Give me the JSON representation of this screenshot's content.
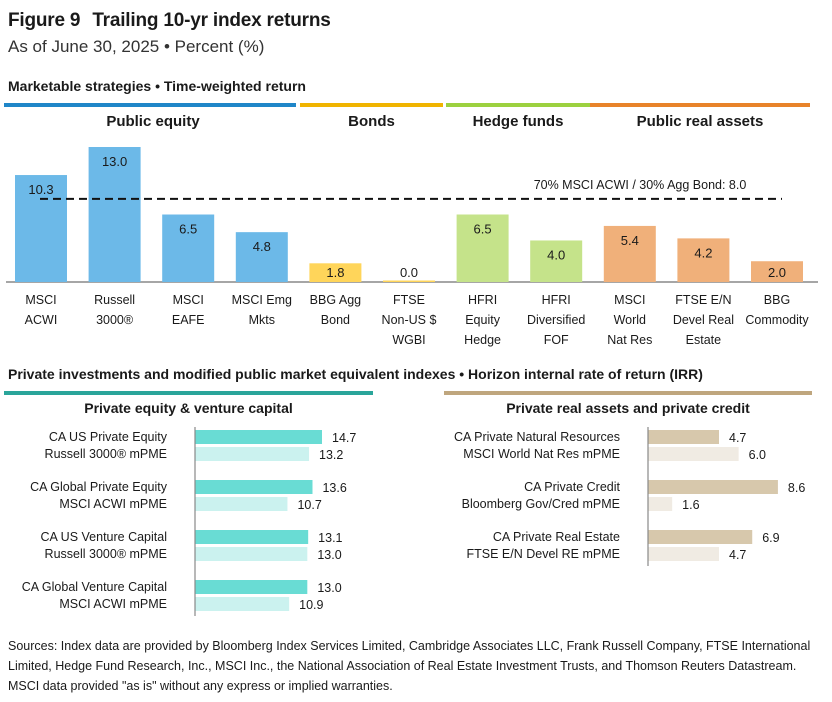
{
  "header": {
    "figure_label": "Figure 9",
    "title": "Trailing 10-yr index returns",
    "subtitle": "As of June 30, 2025 • Percent (%)"
  },
  "sections": {
    "marketable": "Marketable strategies • Time-weighted return",
    "private": "Private investments and modified public market equivalent indexes • Horizon internal rate of return (IRR)"
  },
  "colors": {
    "public_equity": "#6cb9e8",
    "bonds": "#ffd55a",
    "hedge_funds": "#c5e38a",
    "public_real_assets": "#f0b07a",
    "band_public_equity": "#1f86c8",
    "band_bonds": "#f0b400",
    "band_hedge_funds": "#9cd13f",
    "band_public_real_assets": "#e8832a",
    "pe_dark": "#69dcd4",
    "pe_light": "#cbf2ef",
    "band_pe": "#2aa59a",
    "ra_dark": "#d7c8ac",
    "ra_light": "#f0ebe3",
    "band_ra": "#bfa67e"
  },
  "chart_data": [
    {
      "type": "bar",
      "title": "Marketable strategies • Time-weighted return",
      "groups": [
        {
          "name": "Public equity",
          "color_key": "public_equity",
          "band_key": "band_public_equity"
        },
        {
          "name": "Bonds",
          "color_key": "bonds",
          "band_key": "band_bonds"
        },
        {
          "name": "Hedge funds",
          "color_key": "hedge_funds",
          "band_key": "band_hedge_funds"
        },
        {
          "name": "Public real assets",
          "color_key": "public_real_assets",
          "band_key": "band_public_real_assets"
        }
      ],
      "categories": [
        {
          "label": [
            "MSCI",
            "ACWI"
          ],
          "value": 10.3,
          "group": 0
        },
        {
          "label": [
            "Russell",
            "3000®"
          ],
          "value": 13.0,
          "group": 0
        },
        {
          "label": [
            "MSCI",
            "EAFE"
          ],
          "value": 6.5,
          "group": 0
        },
        {
          "label": [
            "MSCI Emg",
            "Mkts"
          ],
          "value": 4.8,
          "group": 0
        },
        {
          "label": [
            "BBG Agg",
            "Bond"
          ],
          "value": 1.8,
          "group": 1
        },
        {
          "label": [
            "FTSE",
            "Non-US $",
            "WGBI"
          ],
          "value": 0.0,
          "group": 1
        },
        {
          "label": [
            "HFRI",
            "Equity",
            "Hedge"
          ],
          "value": 6.5,
          "group": 2
        },
        {
          "label": [
            "HFRI",
            "Diversified",
            "FOF"
          ],
          "value": 4.0,
          "group": 2
        },
        {
          "label": [
            "MSCI",
            "World",
            "Nat Res"
          ],
          "value": 5.4,
          "group": 3
        },
        {
          "label": [
            "FTSE E/N",
            "Devel Real",
            "Estate"
          ],
          "value": 4.2,
          "group": 3
        },
        {
          "label": [
            "BBG",
            "Commodity"
          ],
          "value": 2.0,
          "group": 3
        }
      ],
      "reference_line": {
        "label": "70% MSCI ACWI / 30% Agg Bond: 8.0",
        "value": 8.0,
        "style": "dashed"
      },
      "ylim": [
        0,
        13.0
      ],
      "grid": false
    },
    {
      "type": "bar",
      "orientation": "horizontal",
      "title": "Private equity & venture capital",
      "pairs": [
        {
          "primary": {
            "label": "CA US Private Equity",
            "value": 14.7
          },
          "benchmark": {
            "label": "Russell 3000® mPME",
            "value": 13.2
          }
        },
        {
          "primary": {
            "label": "CA Global Private Equity",
            "value": 13.6
          },
          "benchmark": {
            "label": "MSCI ACWI mPME",
            "value": 10.7
          }
        },
        {
          "primary": {
            "label": "CA US Venture Capital",
            "value": 13.1
          },
          "benchmark": {
            "label": "Russell 3000® mPME",
            "value": 13.0
          }
        },
        {
          "primary": {
            "label": "CA Global Venture Capital",
            "value": 13.0
          },
          "benchmark": {
            "label": "MSCI ACWI mPME",
            "value": 10.9
          }
        }
      ],
      "xlim": [
        0,
        14.7
      ]
    },
    {
      "type": "bar",
      "orientation": "horizontal",
      "title": "Private real assets and private credit",
      "pairs": [
        {
          "primary": {
            "label": "CA Private Natural Resources",
            "value": 4.7
          },
          "benchmark": {
            "label": "MSCI World Nat Res mPME",
            "value": 6.0
          }
        },
        {
          "primary": {
            "label": "CA Private Credit",
            "value": 8.6
          },
          "benchmark": {
            "label": "Bloomberg Gov/Cred mPME",
            "value": 1.6
          }
        },
        {
          "primary": {
            "label": "CA Private Real Estate",
            "value": 6.9
          },
          "benchmark": {
            "label": "FTSE E/N Devel RE mPME",
            "value": 4.7
          }
        }
      ],
      "xlim": [
        0,
        8.6
      ]
    }
  ],
  "footer": {
    "sources": "Sources: Index data are provided by Bloomberg Index Services Limited, Cambridge Associates LLC, Frank Russell Company, FTSE International Limited, Hedge Fund Research, Inc., MSCI Inc., the National Association of Real Estate Investment Trusts, and Thomson Reuters Datastream. MSCI data provided \"as is\" without any express or implied warranties."
  }
}
